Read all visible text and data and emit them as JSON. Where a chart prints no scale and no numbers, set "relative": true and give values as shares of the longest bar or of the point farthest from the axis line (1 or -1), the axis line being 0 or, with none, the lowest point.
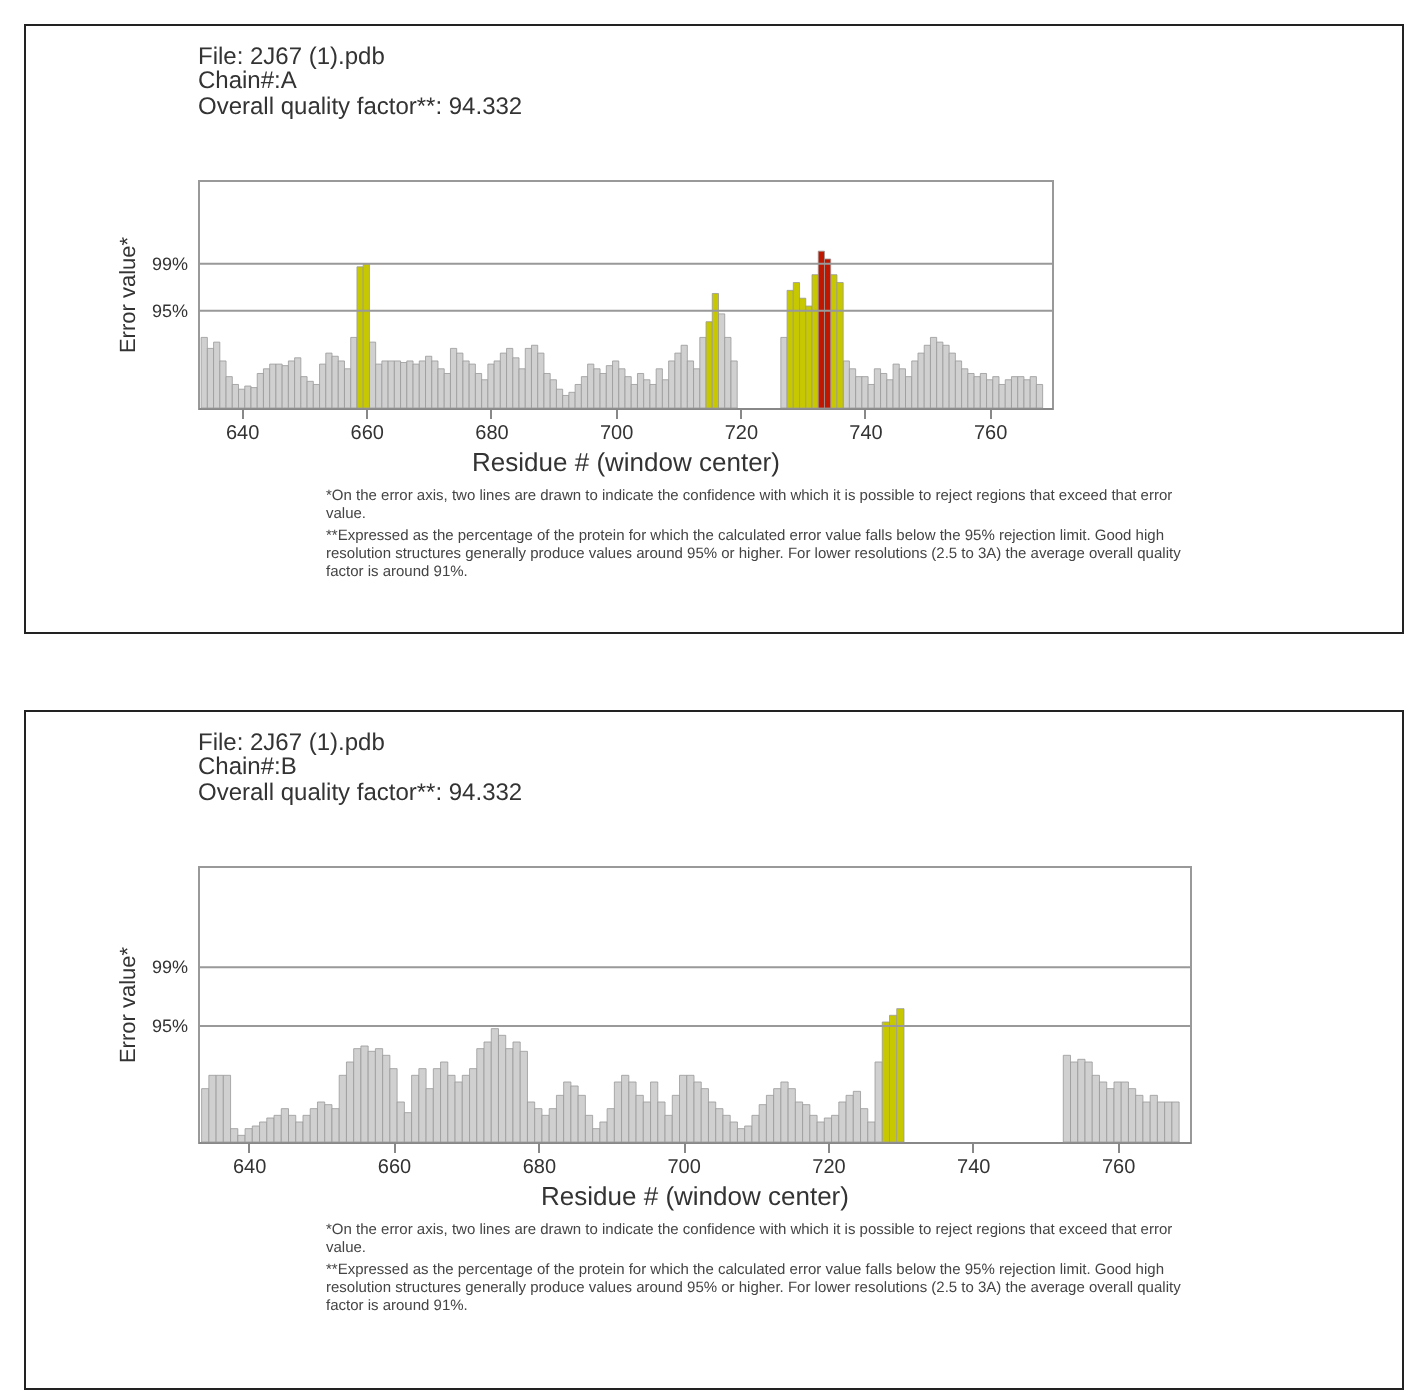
{
  "chart_data": [
    {
      "type": "bar",
      "title": "File: 2J67 (1).pdb",
      "subtitle": "Chain#:A\nOverall quality factor**: 94.332",
      "xlabel": "Residue # (window center)",
      "ylabel": "Error value*",
      "relative": true,
      "xlim": [
        633,
        770
      ],
      "xticks": [
        640,
        660,
        680,
        700,
        720,
        740,
        760
      ],
      "grid": false,
      "series": [
        {
          "color": "#d0d0d0",
          "x": [
            634,
            635,
            636,
            637,
            638,
            639,
            640,
            641,
            642,
            643,
            644,
            645,
            646,
            647,
            648,
            649,
            650,
            651,
            652,
            653,
            654,
            655,
            656,
            657,
            658,
            661,
            662,
            663,
            664,
            665,
            666,
            667,
            668,
            669,
            670,
            671,
            672,
            673,
            674,
            675,
            676,
            677,
            678,
            679,
            680,
            681,
            682,
            683,
            684,
            685,
            686,
            687,
            688,
            689,
            690,
            691,
            692,
            693,
            694,
            695,
            696,
            697,
            698,
            699,
            700,
            701,
            702,
            703,
            704,
            705,
            706,
            707,
            708,
            709,
            710,
            711,
            712,
            713,
            714,
            717,
            718,
            719,
            727,
            737,
            738,
            739,
            740,
            741,
            742,
            743,
            744,
            745,
            746,
            747,
            748,
            749,
            750,
            751,
            752,
            753,
            754,
            755,
            756,
            757,
            758,
            759,
            760,
            761,
            762,
            763,
            764,
            765,
            766,
            767,
            768
          ],
          "values": [
            0.45,
            0.38,
            0.42,
            0.3,
            0.2,
            0.15,
            0.12,
            0.14,
            0.13,
            0.22,
            0.25,
            0.28,
            0.28,
            0.27,
            0.3,
            0.32,
            0.2,
            0.17,
            0.15,
            0.28,
            0.35,
            0.33,
            0.3,
            0.25,
            0.45,
            0.42,
            0.28,
            0.3,
            0.3,
            0.3,
            0.29,
            0.3,
            0.28,
            0.3,
            0.33,
            0.3,
            0.25,
            0.22,
            0.38,
            0.35,
            0.3,
            0.28,
            0.22,
            0.18,
            0.28,
            0.3,
            0.35,
            0.38,
            0.32,
            0.25,
            0.38,
            0.4,
            0.35,
            0.22,
            0.18,
            0.12,
            0.08,
            0.1,
            0.15,
            0.2,
            0.28,
            0.25,
            0.22,
            0.27,
            0.3,
            0.25,
            0.2,
            0.15,
            0.22,
            0.18,
            0.15,
            0.25,
            0.18,
            0.3,
            0.35,
            0.4,
            0.3,
            0.25,
            0.45,
            0.6,
            0.45,
            0.3,
            0.45,
            0.3,
            0.25,
            0.2,
            0.2,
            0.15,
            0.25,
            0.22,
            0.18,
            0.28,
            0.25,
            0.2,
            0.3,
            0.35,
            0.4,
            0.45,
            0.42,
            0.4,
            0.35,
            0.3,
            0.25,
            0.22,
            0.2,
            0.22,
            0.18,
            0.2,
            0.15,
            0.18,
            0.2,
            0.2,
            0.18,
            0.2,
            0.15
          ]
        },
        {
          "color": "#c8c800",
          "x": [
            659,
            660,
            715,
            716,
            728,
            729,
            730,
            731,
            732,
            735,
            736
          ],
          "values": [
            0.9,
            0.92,
            0.55,
            0.73,
            0.75,
            0.8,
            0.7,
            0.65,
            0.85,
            0.85,
            0.8
          ]
        },
        {
          "color": "#c01800",
          "x": [
            733,
            734
          ],
          "values": [
            1.0,
            0.95
          ]
        }
      ],
      "ref_lines": [
        {
          "axis": "y",
          "value": 0.92
        },
        {
          "axis": "y",
          "value": 0.62
        }
      ],
      "annotations": [
        "99%",
        "95%",
        "*On the error axis, two lines are drawn to indicate the confidence with which it is possible to reject regions that exceed that error value.",
        "**Expressed as the percentage of the protein for which the calculated error value falls below the 95% rejection limit. Good high resolution structures generally produce values around 95% or higher. For lower resolutions (2.5 to 3A) the average overall quality factor is around 91%."
      ]
    },
    {
      "type": "bar",
      "title": "File: 2J67 (1).pdb",
      "subtitle": "Chain#:B\nOverall quality factor**: 94.332",
      "xlabel": "Residue # (window center)",
      "ylabel": "Error value*",
      "relative": true,
      "xlim": [
        633,
        770
      ],
      "xticks": [
        640,
        660,
        680,
        700,
        720,
        740,
        760
      ],
      "grid": false,
      "series": [
        {
          "color": "#d0d0d0",
          "x": [
            634,
            635,
            636,
            637,
            638,
            639,
            640,
            641,
            642,
            643,
            644,
            645,
            646,
            647,
            648,
            649,
            650,
            651,
            652,
            653,
            654,
            655,
            656,
            657,
            658,
            659,
            660,
            661,
            662,
            663,
            664,
            665,
            666,
            667,
            668,
            669,
            670,
            671,
            672,
            673,
            674,
            675,
            676,
            677,
            678,
            679,
            680,
            681,
            682,
            683,
            684,
            685,
            686,
            687,
            688,
            689,
            690,
            691,
            692,
            693,
            694,
            695,
            696,
            697,
            698,
            699,
            700,
            701,
            702,
            703,
            704,
            705,
            706,
            707,
            708,
            709,
            710,
            711,
            712,
            713,
            714,
            715,
            716,
            717,
            718,
            719,
            720,
            721,
            722,
            723,
            724,
            725,
            726,
            727,
            753,
            754,
            755,
            756,
            757,
            758,
            759,
            760,
            761,
            762,
            763,
            764,
            765,
            766,
            767,
            768
          ],
          "values": [
            0.4,
            0.5,
            0.5,
            0.5,
            0.1,
            0.05,
            0.1,
            0.12,
            0.15,
            0.18,
            0.2,
            0.25,
            0.2,
            0.15,
            0.2,
            0.25,
            0.3,
            0.28,
            0.25,
            0.5,
            0.6,
            0.7,
            0.72,
            0.68,
            0.7,
            0.65,
            0.55,
            0.3,
            0.22,
            0.5,
            0.55,
            0.4,
            0.55,
            0.6,
            0.5,
            0.45,
            0.5,
            0.55,
            0.7,
            0.75,
            0.85,
            0.8,
            0.7,
            0.75,
            0.68,
            0.3,
            0.25,
            0.2,
            0.25,
            0.35,
            0.45,
            0.42,
            0.35,
            0.2,
            0.1,
            0.15,
            0.25,
            0.45,
            0.5,
            0.45,
            0.35,
            0.3,
            0.45,
            0.3,
            0.2,
            0.35,
            0.5,
            0.5,
            0.45,
            0.4,
            0.3,
            0.25,
            0.2,
            0.15,
            0.1,
            0.12,
            0.2,
            0.28,
            0.35,
            0.4,
            0.45,
            0.4,
            0.3,
            0.28,
            0.2,
            0.15,
            0.18,
            0.2,
            0.3,
            0.35,
            0.38,
            0.25,
            0.15,
            0.6,
            0.65,
            0.6,
            0.62,
            0.6,
            0.5,
            0.45,
            0.4,
            0.45,
            0.45,
            0.4,
            0.35,
            0.3,
            0.35,
            0.3,
            0.3,
            0.3
          ]
        },
        {
          "color": "#c8c800",
          "x": [
            728,
            729,
            730
          ],
          "values": [
            0.9,
            0.95,
            1.0
          ]
        }
      ],
      "ref_lines": [
        {
          "axis": "y",
          "value": 1.31
        },
        {
          "axis": "y",
          "value": 0.87
        }
      ],
      "annotations": [
        "99%",
        "95%",
        "*On the error axis, two lines are drawn to indicate the confidence with which it is possible to reject regions that exceed that error value.",
        "**Expressed as the percentage of the protein for which the calculated error value falls below the 95% rejection limit. Good high resolution structures generally produce values around 95% or higher. For lower resolutions (2.5 to 3A) the average overall quality factor is around 91%."
      ]
    }
  ]
}
